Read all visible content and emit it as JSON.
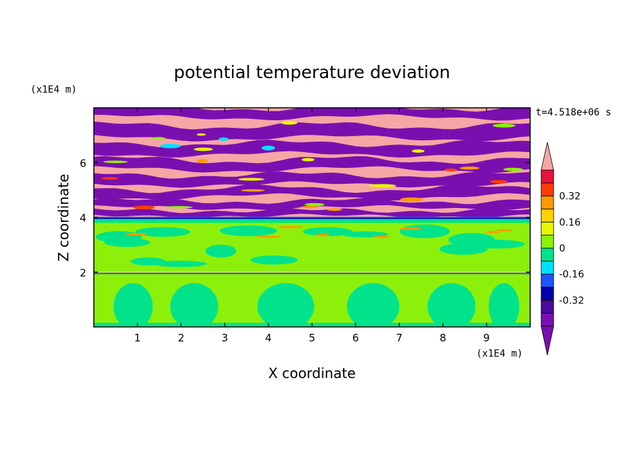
{
  "chart_data": {
    "type": "heatmap",
    "title": "potential temperature deviation",
    "xlabel": "X coordinate",
    "ylabel": "Z coordinate",
    "x_unit": "(x1E4 m)",
    "y_unit": "(x1E4 m)",
    "time_label": "t=4.518e+06 s",
    "xlim": [
      0,
      10
    ],
    "ylim": [
      0,
      8
    ],
    "x_ticks": [
      1,
      2,
      3,
      4,
      5,
      6,
      7,
      8,
      9
    ],
    "y_ticks": [
      2,
      4,
      6
    ],
    "colorbar": {
      "levels": [
        -0.48,
        -0.4,
        -0.32,
        -0.24,
        -0.16,
        -0.08,
        0,
        0.08,
        0.16,
        0.24,
        0.32,
        0.4,
        0.48
      ],
      "colors": [
        "#7a0fb0",
        "#4b0a9c",
        "#0000a8",
        "#1a55ff",
        "#00e1ff",
        "#00e38a",
        "#8df00a",
        "#e6f700",
        "#ffd100",
        "#ff9a00",
        "#ff3d00",
        "#e8123a",
        "#f6a6a4"
      ],
      "tick_labels": [
        "0.32",
        "0.16",
        "0",
        "-0.16",
        "-0.32"
      ],
      "tick_values": [
        0.32,
        0.16,
        0,
        -0.16,
        -0.32
      ],
      "extend": "both"
    },
    "field": {
      "lower_layer": {
        "z_range": [
          0,
          2
        ],
        "dominant_values": [
          0.0,
          0.05
        ]
      },
      "middle_layer": {
        "z_range": [
          2,
          3.8
        ],
        "dominant_values": [
          0.05
        ]
      },
      "upper_layer": {
        "z_range": [
          4,
          8
        ],
        "alternating_values": [
          0.48,
          -0.48
        ]
      }
    }
  }
}
